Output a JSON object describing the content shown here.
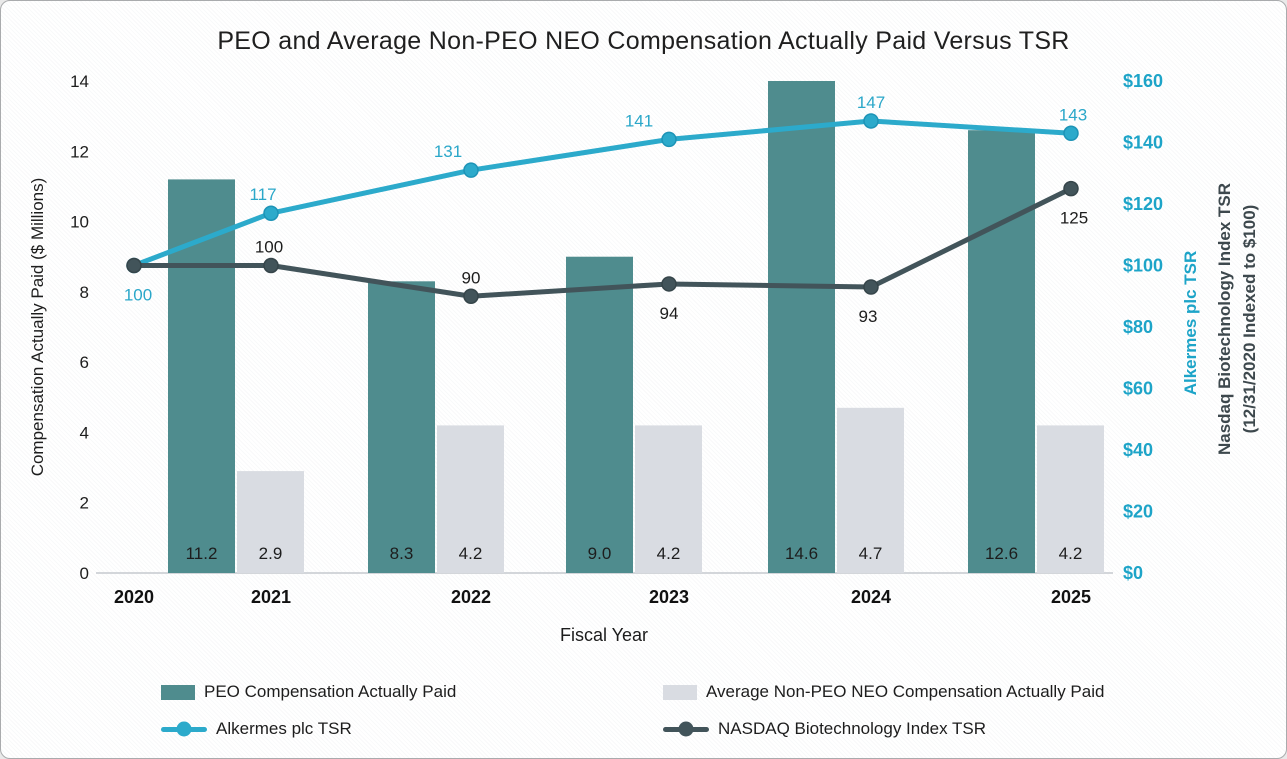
{
  "chart_data": {
    "type": "combo-bar-line",
    "title": "PEO and Average Non-PEO NEO Compensation Actually Paid Versus TSR",
    "x_axis": {
      "title": "Fiscal Year",
      "categories": [
        "2020",
        "2021",
        "2022",
        "2023",
        "2024",
        "2025"
      ]
    },
    "left_axis": {
      "title": "Compensation Actually Paid ($ Millions)",
      "ticks": [
        "0",
        "2",
        "4",
        "6",
        "8",
        "10",
        "12",
        "14"
      ],
      "range": [
        0,
        14
      ]
    },
    "right_axis": {
      "title_line1": "Alkermes plc TSR",
      "title_line2": "Nasdaq Biotechnology Index TSR",
      "title_line3": "(12/31/2020 Indexed to $100)",
      "ticks": [
        "$0",
        "$20",
        "$40",
        "$60",
        "$80",
        "$100",
        "$120",
        "$140",
        "$160"
      ],
      "range": [
        0,
        160
      ]
    },
    "bar_series": [
      {
        "name": "PEO Compensation Actually Paid",
        "color": "#4f8c8e",
        "values": [
          null,
          11.2,
          8.3,
          9.0,
          14.6,
          12.6
        ],
        "value_labels": [
          "",
          "11.2",
          "8.3",
          "9.0",
          "14.6",
          "12.6"
        ]
      },
      {
        "name": "Average Non-PEO NEO Compensation Actually Paid",
        "color": "#d9dce2",
        "values": [
          null,
          2.9,
          4.2,
          4.2,
          4.7,
          4.2
        ],
        "value_labels": [
          "",
          "2.9",
          "4.2",
          "4.2",
          "4.7",
          "4.2"
        ]
      }
    ],
    "line_series": [
      {
        "name": "Alkermes plc TSR",
        "color": "#2caacb",
        "values": [
          100,
          117,
          131,
          141,
          147,
          143
        ],
        "value_labels": [
          "100",
          "117",
          "131",
          "141",
          "147",
          "143"
        ],
        "label_positions": [
          "below",
          "above",
          "above",
          "above",
          "above",
          "above"
        ]
      },
      {
        "name": "NASDAQ Biotechnology Index TSR",
        "color": "#42545a",
        "values": [
          100,
          100,
          90,
          94,
          93,
          125
        ],
        "value_labels": [
          "",
          "100",
          "90",
          "94",
          "93",
          "125"
        ],
        "label_positions": [
          "none",
          "above",
          "above",
          "below",
          "below",
          "below"
        ]
      }
    ],
    "legend": {
      "position": "bottom",
      "items": [
        {
          "label": "PEO Compensation Actually Paid",
          "marker": "bar-swatch",
          "color": "#4f8c8e"
        },
        {
          "label": "Average Non-PEO NEO Compensation Actually Paid",
          "marker": "bar-swatch",
          "color": "#d9dce2"
        },
        {
          "label": "Alkermes plc TSR",
          "marker": "line-marker",
          "color": "#2caacb"
        },
        {
          "label": "NASDAQ Biotechnology Index TSR",
          "marker": "line-marker",
          "color": "#42545a"
        }
      ]
    },
    "colors": {
      "right_axis_text": "#1da4c8",
      "dark_axis_text": "#3d484d",
      "text": "#1d1d1d",
      "baseline": "#d3d6da"
    }
  }
}
